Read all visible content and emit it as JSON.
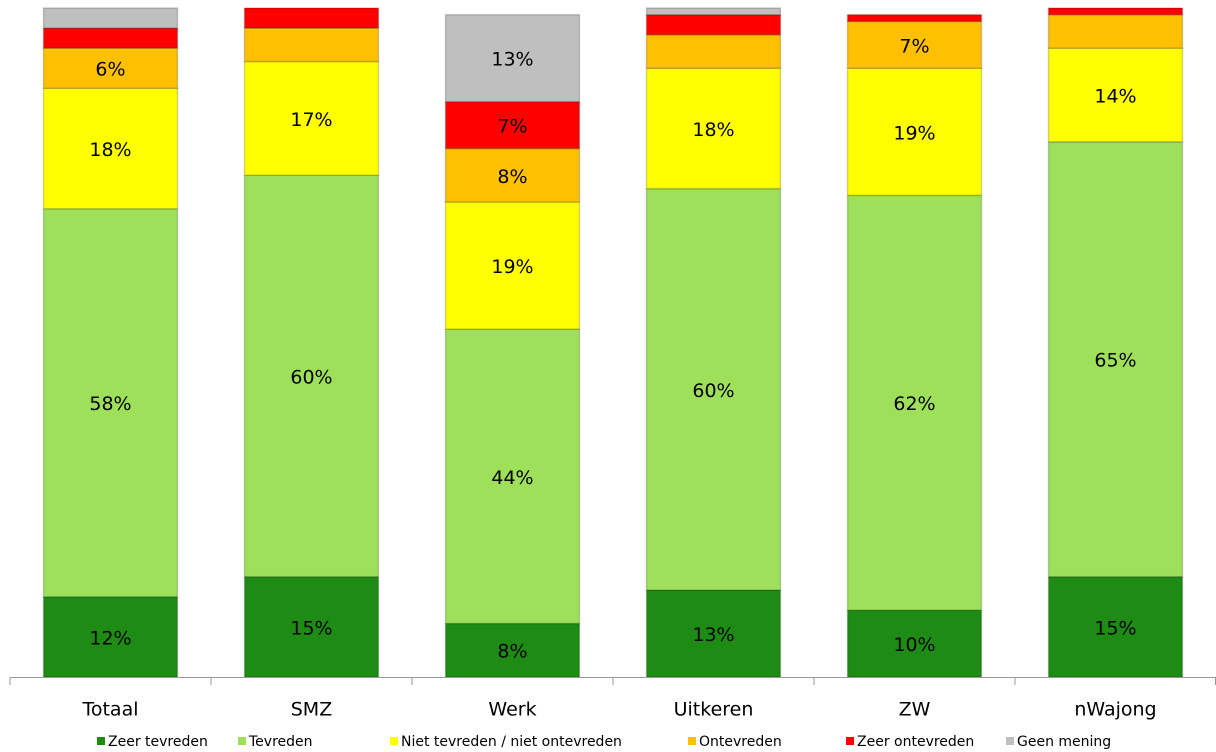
{
  "chart_data": {
    "type": "stacked-bar",
    "categories": [
      "Totaal",
      "SMZ",
      "Werk",
      "Uitkeren",
      "ZW",
      "nWajong"
    ],
    "ylim": [
      0,
      100
    ],
    "series": [
      {
        "name": "Zeer tevreden",
        "color": "#1e8c14",
        "values": [
          12,
          15,
          8,
          13,
          10,
          15
        ],
        "value_labels": [
          "12%",
          "15%",
          "8%",
          "13%",
          "10%",
          "15%"
        ]
      },
      {
        "name": "Tevreden",
        "color": "#9ee05a",
        "values": [
          58,
          60,
          44,
          60,
          62,
          65
        ],
        "value_labels": [
          "58%",
          "60%",
          "44%",
          "60%",
          "62%",
          "65%"
        ]
      },
      {
        "name": "Niet tevreden / niet ontevreden",
        "color": "#ffff00",
        "values": [
          18,
          17,
          19,
          18,
          19,
          14
        ],
        "value_labels": [
          "18%",
          "17%",
          "19%",
          "18%",
          "19%",
          "14%"
        ]
      },
      {
        "name": "Ontevreden",
        "color": "#ffc000",
        "values": [
          6,
          5,
          8,
          5,
          7,
          5
        ],
        "value_labels": [
          "6%",
          null,
          "8%",
          null,
          "7%",
          null
        ]
      },
      {
        "name": "Zeer ontevreden",
        "color": "#ff0000",
        "values": [
          3,
          3,
          7,
          3,
          1,
          1
        ],
        "value_labels": [
          null,
          null,
          "7%",
          null,
          null,
          null
        ]
      },
      {
        "name": "Geen mening",
        "color": "#bfbfbf",
        "values": [
          3,
          0,
          13,
          1,
          0,
          0
        ],
        "value_labels": [
          null,
          null,
          "13%",
          null,
          null,
          null
        ]
      }
    ]
  }
}
